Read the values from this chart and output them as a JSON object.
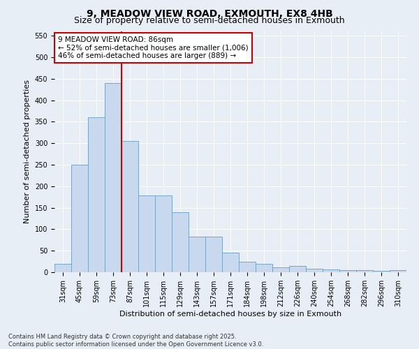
{
  "title": "9, MEADOW VIEW ROAD, EXMOUTH, EX8 4HB",
  "subtitle": "Size of property relative to semi-detached houses in Exmouth",
  "xlabel": "Distribution of semi-detached houses by size in Exmouth",
  "ylabel": "Number of semi-detached properties",
  "categories": [
    "31sqm",
    "45sqm",
    "59sqm",
    "73sqm",
    "87sqm",
    "101sqm",
    "115sqm",
    "129sqm",
    "143sqm",
    "157sqm",
    "171sqm",
    "184sqm",
    "198sqm",
    "212sqm",
    "226sqm",
    "240sqm",
    "254sqm",
    "268sqm",
    "282sqm",
    "296sqm",
    "310sqm"
  ],
  "values": [
    20,
    250,
    360,
    440,
    305,
    178,
    178,
    140,
    82,
    82,
    45,
    25,
    20,
    12,
    15,
    8,
    7,
    5,
    5,
    3,
    5
  ],
  "bar_color": "#c9d9ed",
  "bar_edge_color": "#7aa6c8",
  "ref_line_index": 4,
  "ref_line_label": "9 MEADOW VIEW ROAD: 86sqm",
  "annotation_smaller": "← 52% of semi-detached houses are smaller (1,006)",
  "annotation_larger": "46% of semi-detached houses are larger (889) →",
  "ref_box_color": "#cc0000",
  "ylim": [
    0,
    560
  ],
  "yticks": [
    0,
    50,
    100,
    150,
    200,
    250,
    300,
    350,
    400,
    450,
    500,
    550
  ],
  "footnote": "Contains HM Land Registry data © Crown copyright and database right 2025.\nContains public sector information licensed under the Open Government Licence v3.0.",
  "bg_color": "#e8eef5",
  "title_fontsize": 10,
  "subtitle_fontsize": 9,
  "axis_label_fontsize": 8,
  "tick_fontsize": 7,
  "annotation_fontsize": 7.5,
  "footnote_fontsize": 6
}
